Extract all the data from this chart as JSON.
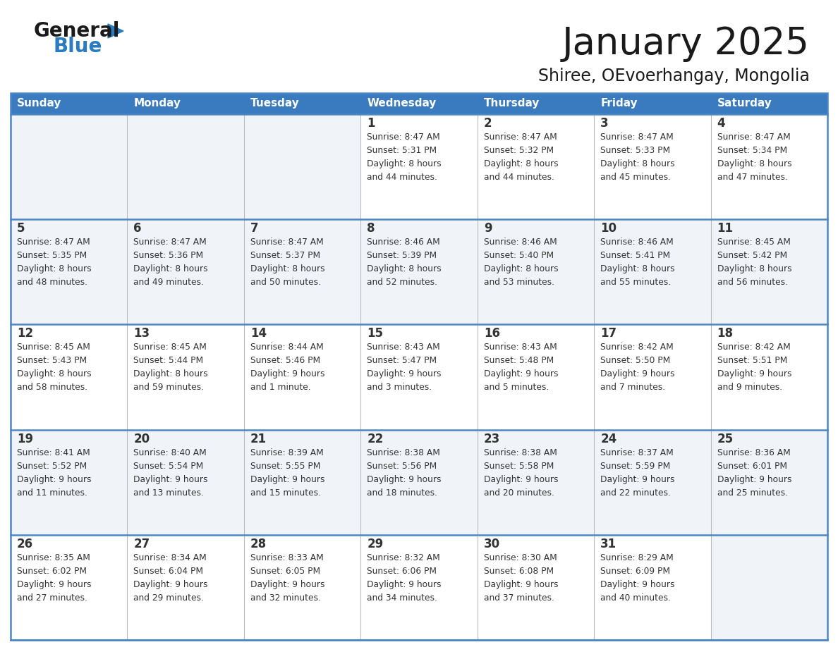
{
  "title": "January 2025",
  "subtitle": "Shiree, OEvoerhangay, Mongolia",
  "header_color": "#3a7bbf",
  "header_text_color": "#ffffff",
  "row_bg_even": "#ffffff",
  "row_bg_odd": "#f0f4f8",
  "empty_cell_bg": "#f0f4f8",
  "cell_border_color": "#4a86c8",
  "text_color": "#333333",
  "logo_general_color": "#1a1a1a",
  "logo_blue_color": "#2a7bbf",
  "days_of_week": [
    "Sunday",
    "Monday",
    "Tuesday",
    "Wednesday",
    "Thursday",
    "Friday",
    "Saturday"
  ],
  "weeks": [
    [
      {
        "day": null,
        "info": null
      },
      {
        "day": null,
        "info": null
      },
      {
        "day": null,
        "info": null
      },
      {
        "day": "1",
        "info": "Sunrise: 8:47 AM\nSunset: 5:31 PM\nDaylight: 8 hours\nand 44 minutes."
      },
      {
        "day": "2",
        "info": "Sunrise: 8:47 AM\nSunset: 5:32 PM\nDaylight: 8 hours\nand 44 minutes."
      },
      {
        "day": "3",
        "info": "Sunrise: 8:47 AM\nSunset: 5:33 PM\nDaylight: 8 hours\nand 45 minutes."
      },
      {
        "day": "4",
        "info": "Sunrise: 8:47 AM\nSunset: 5:34 PM\nDaylight: 8 hours\nand 47 minutes."
      }
    ],
    [
      {
        "day": "5",
        "info": "Sunrise: 8:47 AM\nSunset: 5:35 PM\nDaylight: 8 hours\nand 48 minutes."
      },
      {
        "day": "6",
        "info": "Sunrise: 8:47 AM\nSunset: 5:36 PM\nDaylight: 8 hours\nand 49 minutes."
      },
      {
        "day": "7",
        "info": "Sunrise: 8:47 AM\nSunset: 5:37 PM\nDaylight: 8 hours\nand 50 minutes."
      },
      {
        "day": "8",
        "info": "Sunrise: 8:46 AM\nSunset: 5:39 PM\nDaylight: 8 hours\nand 52 minutes."
      },
      {
        "day": "9",
        "info": "Sunrise: 8:46 AM\nSunset: 5:40 PM\nDaylight: 8 hours\nand 53 minutes."
      },
      {
        "day": "10",
        "info": "Sunrise: 8:46 AM\nSunset: 5:41 PM\nDaylight: 8 hours\nand 55 minutes."
      },
      {
        "day": "11",
        "info": "Sunrise: 8:45 AM\nSunset: 5:42 PM\nDaylight: 8 hours\nand 56 minutes."
      }
    ],
    [
      {
        "day": "12",
        "info": "Sunrise: 8:45 AM\nSunset: 5:43 PM\nDaylight: 8 hours\nand 58 minutes."
      },
      {
        "day": "13",
        "info": "Sunrise: 8:45 AM\nSunset: 5:44 PM\nDaylight: 8 hours\nand 59 minutes."
      },
      {
        "day": "14",
        "info": "Sunrise: 8:44 AM\nSunset: 5:46 PM\nDaylight: 9 hours\nand 1 minute."
      },
      {
        "day": "15",
        "info": "Sunrise: 8:43 AM\nSunset: 5:47 PM\nDaylight: 9 hours\nand 3 minutes."
      },
      {
        "day": "16",
        "info": "Sunrise: 8:43 AM\nSunset: 5:48 PM\nDaylight: 9 hours\nand 5 minutes."
      },
      {
        "day": "17",
        "info": "Sunrise: 8:42 AM\nSunset: 5:50 PM\nDaylight: 9 hours\nand 7 minutes."
      },
      {
        "day": "18",
        "info": "Sunrise: 8:42 AM\nSunset: 5:51 PM\nDaylight: 9 hours\nand 9 minutes."
      }
    ],
    [
      {
        "day": "19",
        "info": "Sunrise: 8:41 AM\nSunset: 5:52 PM\nDaylight: 9 hours\nand 11 minutes."
      },
      {
        "day": "20",
        "info": "Sunrise: 8:40 AM\nSunset: 5:54 PM\nDaylight: 9 hours\nand 13 minutes."
      },
      {
        "day": "21",
        "info": "Sunrise: 8:39 AM\nSunset: 5:55 PM\nDaylight: 9 hours\nand 15 minutes."
      },
      {
        "day": "22",
        "info": "Sunrise: 8:38 AM\nSunset: 5:56 PM\nDaylight: 9 hours\nand 18 minutes."
      },
      {
        "day": "23",
        "info": "Sunrise: 8:38 AM\nSunset: 5:58 PM\nDaylight: 9 hours\nand 20 minutes."
      },
      {
        "day": "24",
        "info": "Sunrise: 8:37 AM\nSunset: 5:59 PM\nDaylight: 9 hours\nand 22 minutes."
      },
      {
        "day": "25",
        "info": "Sunrise: 8:36 AM\nSunset: 6:01 PM\nDaylight: 9 hours\nand 25 minutes."
      }
    ],
    [
      {
        "day": "26",
        "info": "Sunrise: 8:35 AM\nSunset: 6:02 PM\nDaylight: 9 hours\nand 27 minutes."
      },
      {
        "day": "27",
        "info": "Sunrise: 8:34 AM\nSunset: 6:04 PM\nDaylight: 9 hours\nand 29 minutes."
      },
      {
        "day": "28",
        "info": "Sunrise: 8:33 AM\nSunset: 6:05 PM\nDaylight: 9 hours\nand 32 minutes."
      },
      {
        "day": "29",
        "info": "Sunrise: 8:32 AM\nSunset: 6:06 PM\nDaylight: 9 hours\nand 34 minutes."
      },
      {
        "day": "30",
        "info": "Sunrise: 8:30 AM\nSunset: 6:08 PM\nDaylight: 9 hours\nand 37 minutes."
      },
      {
        "day": "31",
        "info": "Sunrise: 8:29 AM\nSunset: 6:09 PM\nDaylight: 9 hours\nand 40 minutes."
      },
      {
        "day": null,
        "info": null
      }
    ]
  ]
}
